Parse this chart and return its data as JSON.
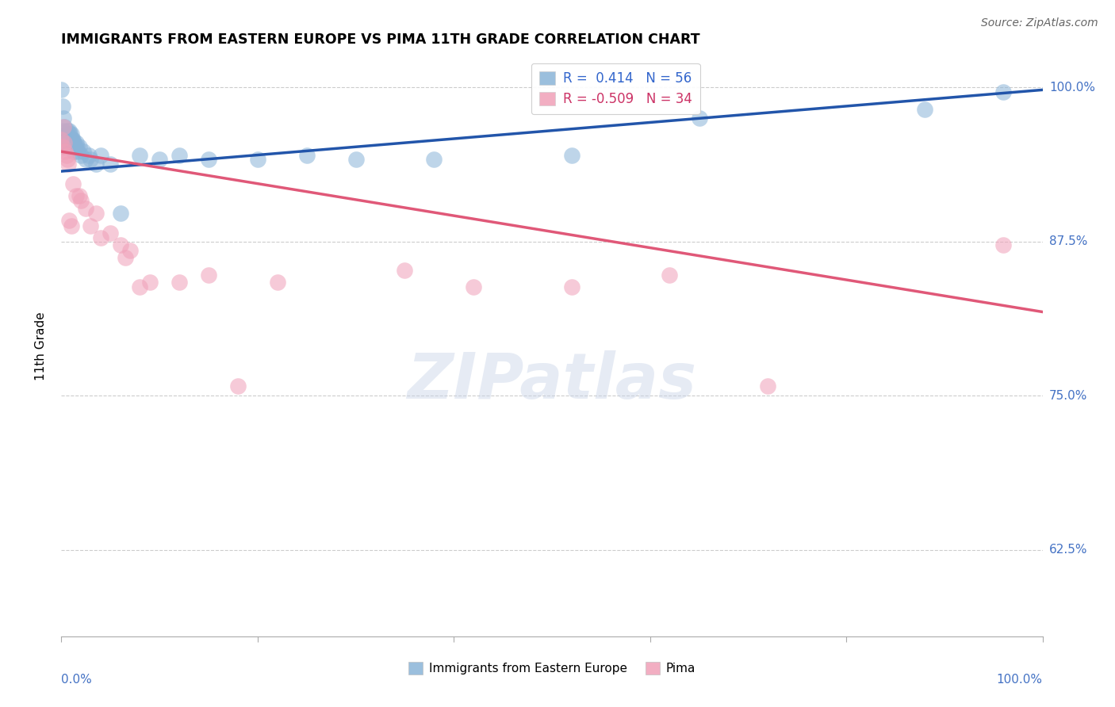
{
  "title": "IMMIGRANTS FROM EASTERN EUROPE VS PIMA 11TH GRADE CORRELATION CHART",
  "source": "Source: ZipAtlas.com",
  "ylabel": "11th Grade",
  "xlim": [
    0.0,
    1.0
  ],
  "ylim": [
    0.555,
    1.025
  ],
  "yticks": [
    0.625,
    0.75,
    0.875,
    1.0
  ],
  "ytick_labels": [
    "62.5%",
    "75.0%",
    "87.5%",
    "100.0%"
  ],
  "blue_R": 0.414,
  "blue_N": 56,
  "pink_R": -0.509,
  "pink_N": 34,
  "blue_color": "#8ab4d8",
  "pink_color": "#f0a0b8",
  "blue_line_color": "#2255aa",
  "pink_line_color": "#e05878",
  "blue_scatter_x": [
    0.0,
    0.001,
    0.002,
    0.002,
    0.003,
    0.003,
    0.003,
    0.004,
    0.004,
    0.005,
    0.005,
    0.006,
    0.006,
    0.007,
    0.007,
    0.008,
    0.008,
    0.008,
    0.009,
    0.009,
    0.009,
    0.01,
    0.01,
    0.01,
    0.011,
    0.011,
    0.012,
    0.012,
    0.013,
    0.013,
    0.014,
    0.015,
    0.016,
    0.017,
    0.018,
    0.02,
    0.022,
    0.025,
    0.028,
    0.03,
    0.035,
    0.04,
    0.05,
    0.06,
    0.08,
    0.1,
    0.12,
    0.15,
    0.2,
    0.25,
    0.3,
    0.38,
    0.52,
    0.65,
    0.88,
    0.96
  ],
  "blue_scatter_y": [
    0.998,
    0.985,
    0.975,
    0.965,
    0.968,
    0.96,
    0.955,
    0.958,
    0.952,
    0.962,
    0.955,
    0.965,
    0.958,
    0.96,
    0.955,
    0.965,
    0.958,
    0.952,
    0.962,
    0.958,
    0.952,
    0.962,
    0.958,
    0.952,
    0.958,
    0.952,
    0.958,
    0.952,
    0.955,
    0.948,
    0.952,
    0.955,
    0.952,
    0.948,
    0.952,
    0.945,
    0.948,
    0.942,
    0.945,
    0.942,
    0.938,
    0.945,
    0.938,
    0.898,
    0.945,
    0.942,
    0.945,
    0.942,
    0.942,
    0.945,
    0.942,
    0.942,
    0.945,
    0.975,
    0.982,
    0.996
  ],
  "pink_scatter_x": [
    0.0,
    0.001,
    0.002,
    0.003,
    0.004,
    0.005,
    0.006,
    0.007,
    0.008,
    0.01,
    0.012,
    0.015,
    0.018,
    0.02,
    0.025,
    0.03,
    0.035,
    0.04,
    0.05,
    0.06,
    0.065,
    0.07,
    0.08,
    0.09,
    0.12,
    0.15,
    0.18,
    0.22,
    0.35,
    0.42,
    0.52,
    0.62,
    0.72,
    0.96
  ],
  "pink_scatter_y": [
    0.958,
    0.952,
    0.968,
    0.955,
    0.948,
    0.945,
    0.942,
    0.938,
    0.892,
    0.888,
    0.922,
    0.912,
    0.912,
    0.908,
    0.902,
    0.888,
    0.898,
    0.878,
    0.882,
    0.872,
    0.862,
    0.868,
    0.838,
    0.842,
    0.842,
    0.848,
    0.758,
    0.842,
    0.852,
    0.838,
    0.838,
    0.848,
    0.758,
    0.872
  ]
}
